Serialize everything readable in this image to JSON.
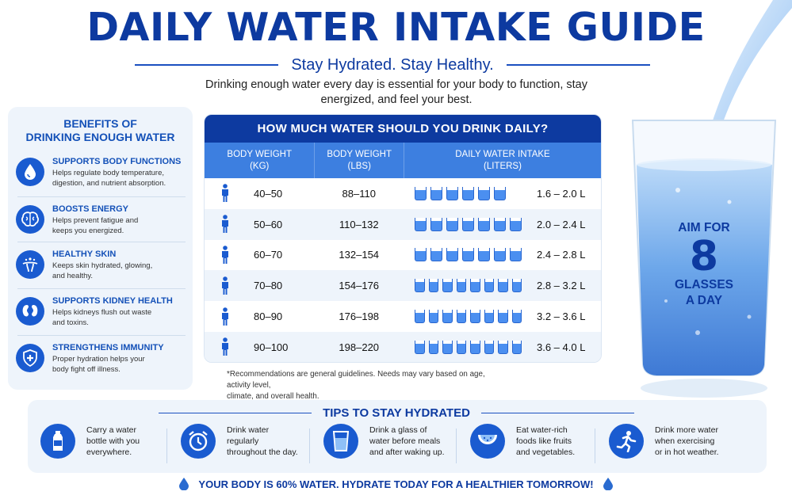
{
  "header": {
    "title": "DAILY WATER INTAKE GUIDE",
    "subtitle": "Stay Hydrated. Stay Healthy.",
    "intro": "Drinking enough water every day is essential for your body to function, stay energized, and feel your best."
  },
  "benefits": {
    "title_line1": "BENEFITS OF",
    "title_line2": "DRINKING ENOUGH WATER",
    "items": [
      {
        "icon": "water-drop-icon",
        "title": "SUPPORTS BODY FUNCTIONS",
        "desc1": "Helps regulate body temperature,",
        "desc2": "digestion, and nutrient absorption."
      },
      {
        "icon": "brain-icon",
        "title": "BOOSTS ENERGY",
        "desc1": "Helps prevent fatigue and",
        "desc2": "keeps you energized."
      },
      {
        "icon": "skin-icon",
        "title": "HEALTHY SKIN",
        "desc1": "Keeps skin hydrated, glowing,",
        "desc2": "and healthy."
      },
      {
        "icon": "kidney-icon",
        "title": "SUPPORTS KIDNEY HEALTH",
        "desc1": "Helps kidneys flush out waste",
        "desc2": "and toxins."
      },
      {
        "icon": "shield-plus-icon",
        "title": "STRENGTHENS IMMUNITY",
        "desc1": "Proper hydration helps your",
        "desc2": "body fight off illness."
      }
    ]
  },
  "table": {
    "title": "HOW MUCH WATER SHOULD YOU DRINK DAILY?",
    "col1": [
      "BODY WEIGHT",
      "(KG)"
    ],
    "col2": [
      "BODY WEIGHT",
      "(LBS)"
    ],
    "col3": [
      "DAILY WATER INTAKE",
      "(LITERS)"
    ],
    "rows": [
      {
        "kg": "40–50",
        "lbs": "88–110",
        "glasses": 6,
        "liters": "1.6 – 2.0 L"
      },
      {
        "kg": "50–60",
        "lbs": "110–132",
        "glasses": 7,
        "liters": "2.0 – 2.4 L"
      },
      {
        "kg": "60–70",
        "lbs": "132–154",
        "glasses": 7,
        "liters": "2.4 – 2.8 L"
      },
      {
        "kg": "70–80",
        "lbs": "154–176",
        "glasses": 8,
        "liters": "2.8 – 3.2 L"
      },
      {
        "kg": "80–90",
        "lbs": "176–198",
        "glasses": 8,
        "liters": "3.2 – 3.6 L"
      },
      {
        "kg": "90–100",
        "lbs": "198–220",
        "glasses": 8,
        "liters": "3.6 – 4.0 L"
      }
    ],
    "note1": "*Recommendations are general guidelines. Needs may vary based on age, activity level,",
    "note2": "climate, and overall health."
  },
  "aim": {
    "line1": "AIM FOR",
    "number": "8",
    "line2": "GLASSES",
    "line3": "A DAY"
  },
  "tips": {
    "title": "TIPS TO STAY HYDRATED",
    "items": [
      {
        "icon": "water-bottle-icon",
        "l1": "Carry a water",
        "l2": "bottle with you",
        "l3": "everywhere."
      },
      {
        "icon": "alarm-clock-icon",
        "l1": "Drink water",
        "l2": "regularly",
        "l3": "throughout the day."
      },
      {
        "icon": "glass-icon",
        "l1": "Drink a glass of",
        "l2": "water before meals",
        "l3": "and after waking up."
      },
      {
        "icon": "watermelon-icon",
        "l1": "Eat water-rich",
        "l2": "foods like fruits",
        "l3": "and vegetables."
      },
      {
        "icon": "runner-icon",
        "l1": "Drink more water",
        "l2": "when exercising",
        "l3": "or in hot weather."
      }
    ]
  },
  "footer": {
    "text": "YOUR BODY IS 60% WATER. HYDRATE TODAY FOR A HEALTHIER TOMORROW!"
  },
  "colors": {
    "primary": "#0d3aa0",
    "accent": "#3d7fe0",
    "panel": "#eef4fb"
  }
}
